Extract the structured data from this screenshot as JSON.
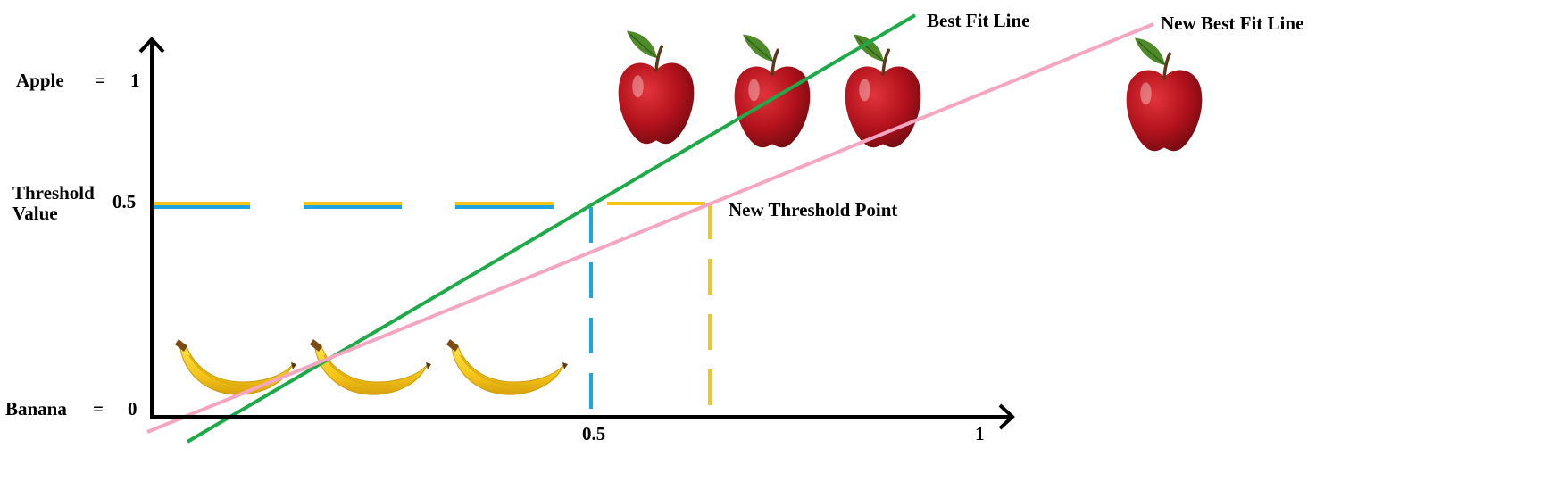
{
  "labels": {
    "apple_label": "Apple",
    "apple_equals": "=",
    "apple_value": "1",
    "threshold_line1": "Threshold",
    "threshold_line2": "Value",
    "threshold_value": "0.5",
    "banana_label": "Banana",
    "banana_equals": "=",
    "banana_value": "0",
    "x_tick_mid": "0.5",
    "x_tick_end": "1",
    "best_fit_label": "Best Fit Line",
    "new_best_fit_label": "New Best Fit Line",
    "new_threshold_label": "New Threshold Point"
  },
  "colors": {
    "axis": "#000000",
    "best_fit_line": "#1faa4a",
    "new_best_fit_line": "#f4a6c0",
    "threshold_blue": "#1ea5e0",
    "threshold_yellow": "#f5c518",
    "apple_red": "#b3121c",
    "apple_leaf": "#4e8a2a",
    "banana_yellow": "#f5cc1a"
  },
  "objects": {
    "apples": [
      "apple",
      "apple",
      "apple",
      "apple"
    ],
    "bananas": [
      "banana",
      "banana",
      "banana"
    ]
  }
}
